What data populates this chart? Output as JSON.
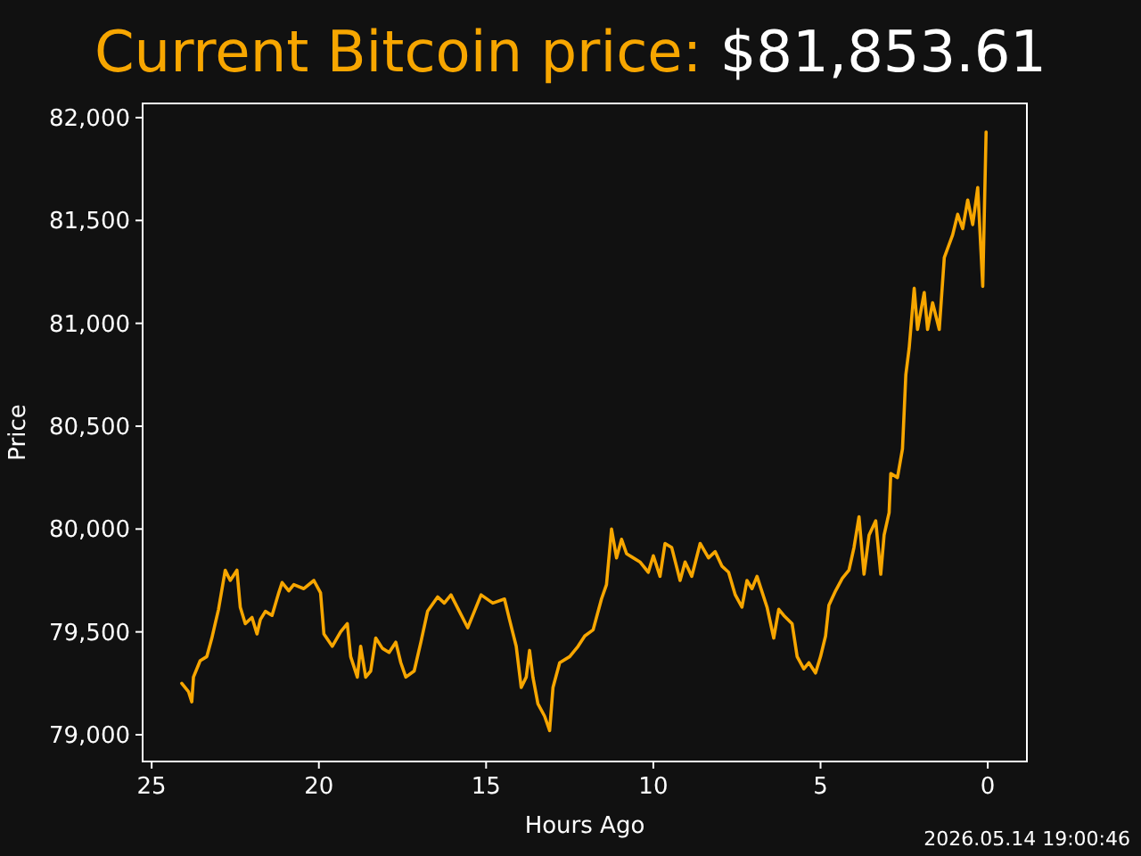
{
  "chart_data": {
    "type": "line",
    "title": "Current Bitcoin price:",
    "subtitle": "$81,853.61",
    "xlabel": "Hours Ago",
    "ylabel": "Price",
    "annotations": [
      "2026.05.14 19:00:46"
    ],
    "xlim": [
      25.27,
      -1.17
    ],
    "xticks": [
      25,
      20,
      15,
      10,
      5,
      0
    ],
    "ylim": [
      78870,
      82069
    ],
    "yticks": [
      {
        "value": 79000,
        "label": "79,000"
      },
      {
        "value": 79500,
        "label": "79,500"
      },
      {
        "value": 80000,
        "label": "80,000"
      },
      {
        "value": 80500,
        "label": "80,500"
      },
      {
        "value": 81000,
        "label": "81,000"
      },
      {
        "value": 81500,
        "label": "81,500"
      },
      {
        "value": 82000,
        "label": "82,000"
      }
    ],
    "grid": false,
    "series": [
      {
        "color": "#f7a600",
        "x": [
          24.1,
          23.9,
          23.8,
          23.75,
          23.55,
          23.35,
          23.2,
          23.1,
          23.0,
          22.8,
          22.65,
          22.45,
          22.35,
          22.2,
          22.0,
          21.85,
          21.75,
          21.6,
          21.4,
          21.2,
          21.1,
          20.9,
          20.75,
          20.45,
          20.15,
          19.95,
          19.85,
          19.6,
          19.35,
          19.15,
          19.05,
          18.85,
          18.75,
          18.6,
          18.45,
          18.3,
          18.1,
          17.9,
          17.7,
          17.55,
          17.4,
          17.15,
          16.95,
          16.75,
          16.45,
          16.25,
          16.05,
          15.8,
          15.55,
          15.35,
          15.15,
          14.8,
          14.45,
          14.3,
          14.1,
          13.95,
          13.8,
          13.7,
          13.6,
          13.45,
          13.25,
          13.1,
          13.0,
          12.8,
          12.5,
          12.25,
          12.05,
          11.8,
          11.55,
          11.4,
          11.25,
          11.1,
          10.95,
          10.8,
          10.6,
          10.4,
          10.15,
          10.0,
          9.8,
          9.65,
          9.45,
          9.2,
          9.05,
          8.85,
          8.6,
          8.35,
          8.15,
          7.95,
          7.75,
          7.55,
          7.35,
          7.2,
          7.05,
          6.9,
          6.6,
          6.4,
          6.25,
          6.1,
          5.85,
          5.7,
          5.5,
          5.35,
          5.15,
          5.0,
          4.85,
          4.75,
          4.55,
          4.35,
          4.15,
          4.0,
          3.85,
          3.7,
          3.55,
          3.35,
          3.2,
          3.1,
          2.95,
          2.9,
          2.7,
          2.55,
          2.45,
          2.35,
          2.2,
          2.1,
          1.9,
          1.8,
          1.65,
          1.45,
          1.3,
          1.05,
          0.9,
          0.75,
          0.6,
          0.45,
          0.3,
          0.15,
          0.05
        ],
        "values": [
          79250,
          79210,
          79160,
          79280,
          79360,
          79380,
          79470,
          79540,
          79610,
          79800,
          79750,
          79800,
          79620,
          79540,
          79570,
          79490,
          79560,
          79600,
          79580,
          79690,
          79740,
          79700,
          79730,
          79710,
          79750,
          79690,
          79490,
          79430,
          79500,
          79540,
          79380,
          79280,
          79430,
          79280,
          79310,
          79470,
          79420,
          79400,
          79450,
          79350,
          79280,
          79310,
          79450,
          79600,
          79670,
          79640,
          79680,
          79600,
          79520,
          79600,
          79680,
          79640,
          79660,
          79560,
          79430,
          79230,
          79280,
          79410,
          79280,
          79150,
          79090,
          79020,
          79230,
          79350,
          79380,
          79430,
          79480,
          79510,
          79660,
          79730,
          80000,
          79860,
          79950,
          79880,
          79860,
          79840,
          79790,
          79870,
          79770,
          79930,
          79910,
          79750,
          79840,
          79770,
          79930,
          79860,
          79890,
          79820,
          79790,
          79680,
          79620,
          79750,
          79710,
          79770,
          79620,
          79470,
          79610,
          79580,
          79540,
          79380,
          79320,
          79350,
          79300,
          79380,
          79480,
          79630,
          79700,
          79760,
          79800,
          79910,
          80060,
          79780,
          79970,
          80040,
          79780,
          79970,
          80080,
          80270,
          80250,
          80390,
          80750,
          80880,
          81170,
          80970,
          81150,
          80970,
          81100,
          80970,
          81320,
          81430,
          81530,
          81460,
          81600,
          81480,
          81660,
          81180,
          81930
        ]
      }
    ]
  }
}
